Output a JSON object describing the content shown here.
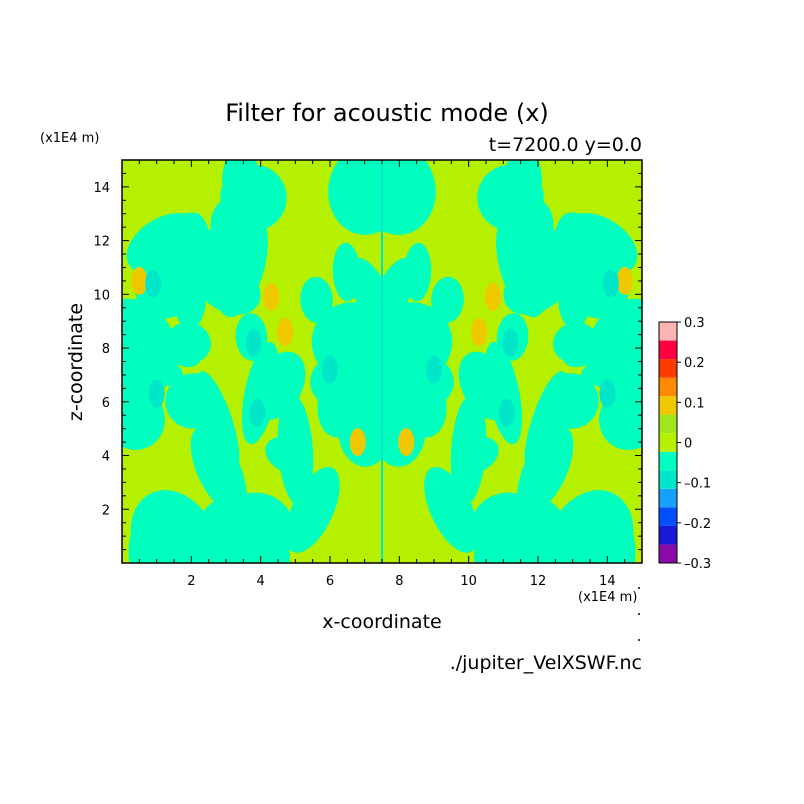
{
  "chart_data": {
    "type": "heatmap",
    "title": "Filter for acoustic mode (x)",
    "subtitle": "t=7200.0 y=0.0",
    "xlabel": "x-coordinate",
    "ylabel": "z-coordinate",
    "x_unit": "(x1E4 m)",
    "z_unit": "(x1E4 m)",
    "source_file": "./jupiter_VelXSWF.nc",
    "xlim": [
      0,
      15
    ],
    "ylim": [
      0,
      15
    ],
    "xticks": [
      2,
      4,
      6,
      8,
      10,
      12,
      14
    ],
    "xtick_labels": [
      "2",
      "4",
      "6",
      "8",
      "10",
      "12",
      "14"
    ],
    "yticks": [
      2,
      4,
      6,
      8,
      10,
      12,
      14
    ],
    "ytick_labels": [
      "2",
      "4",
      "6",
      "8",
      "10",
      "12",
      "14"
    ],
    "colorbar": {
      "levels": [
        -0.3,
        -0.25,
        -0.2,
        -0.15,
        -0.1,
        -0.05,
        0,
        0.05,
        0.1,
        0.15,
        0.2,
        0.25,
        0.3
      ],
      "tick_values": [
        0.3,
        0.2,
        0.1,
        0,
        -0.1,
        -0.2,
        -0.3
      ],
      "tick_labels": [
        "0.3",
        "0.2",
        "0.1",
        "0",
        "–0.1",
        "–0.2",
        "–0.3"
      ],
      "colors": [
        "#8a0ca8",
        "#1a1ad6",
        "#0050ff",
        "#1aa0ff",
        "#00e6c8",
        "#00ffbf",
        "#b4f000",
        "#a0e61e",
        "#f0c800",
        "#ff8a00",
        "#ff3c00",
        "#ff0040",
        "#ffb4b4"
      ]
    },
    "field": {
      "background_value": 0.02,
      "symmetry": "mirror about x=7.5",
      "blobs": [
        {
          "x": 0.5,
          "z": 10.5,
          "value": 0.12
        },
        {
          "x": 0.9,
          "z": 10.4,
          "value": -0.08
        },
        {
          "x": 4.3,
          "z": 9.9,
          "value": 0.1
        },
        {
          "x": 4.7,
          "z": 8.6,
          "value": 0.12
        },
        {
          "x": 3.8,
          "z": 8.2,
          "value": -0.1
        },
        {
          "x": 1.0,
          "z": 6.3,
          "value": -0.1
        },
        {
          "x": 3.9,
          "z": 5.6,
          "value": -0.08
        },
        {
          "x": 6.8,
          "z": 4.5,
          "value": 0.1
        },
        {
          "x": 6.0,
          "z": 7.2,
          "value": -0.06
        }
      ]
    }
  }
}
